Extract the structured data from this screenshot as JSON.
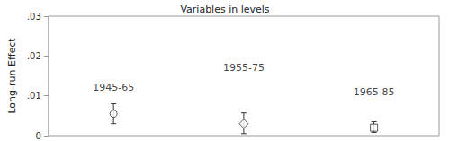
{
  "chart_data": {
    "type": "scatter",
    "title": "Variables in levels",
    "y_label": "Long-run Effect",
    "categories": [
      null,
      null,
      null
    ],
    "series": [
      {
        "marker": "circle",
        "color": "#333333",
        "values": [
          0.0055,
          null,
          null
        ],
        "lower": [
          0.003,
          null,
          null
        ],
        "upper": [
          0.008,
          null,
          null
        ]
      },
      {
        "marker": "diamond",
        "color": "#333333",
        "values": [
          null,
          0.003,
          null
        ],
        "lower": [
          null,
          0.0005,
          null
        ],
        "upper": [
          null,
          0.0057,
          null
        ]
      },
      {
        "marker": "square",
        "color": "#333333",
        "values": [
          null,
          null,
          0.002
        ],
        "lower": [
          null,
          null,
          0.0008
        ],
        "upper": [
          null,
          null,
          0.0035
        ]
      }
    ],
    "annotations": [
      {
        "text": "1945-65",
        "x": 0,
        "y": 0.012
      },
      {
        "text": "1955-75",
        "x": 1,
        "y": 0.017
      },
      {
        "text": "1965-85",
        "x": 2,
        "y": 0.011
      }
    ],
    "ylim": [
      0,
      0.03
    ],
    "yticks": [
      0,
      {
        "value": 0.01,
        "label": ".01"
      },
      {
        "value": 0.02,
        "label": ".02"
      },
      {
        "value": 0.03,
        "label": ".03"
      }
    ],
    "grid": false,
    "tick_labels": "y"
  }
}
